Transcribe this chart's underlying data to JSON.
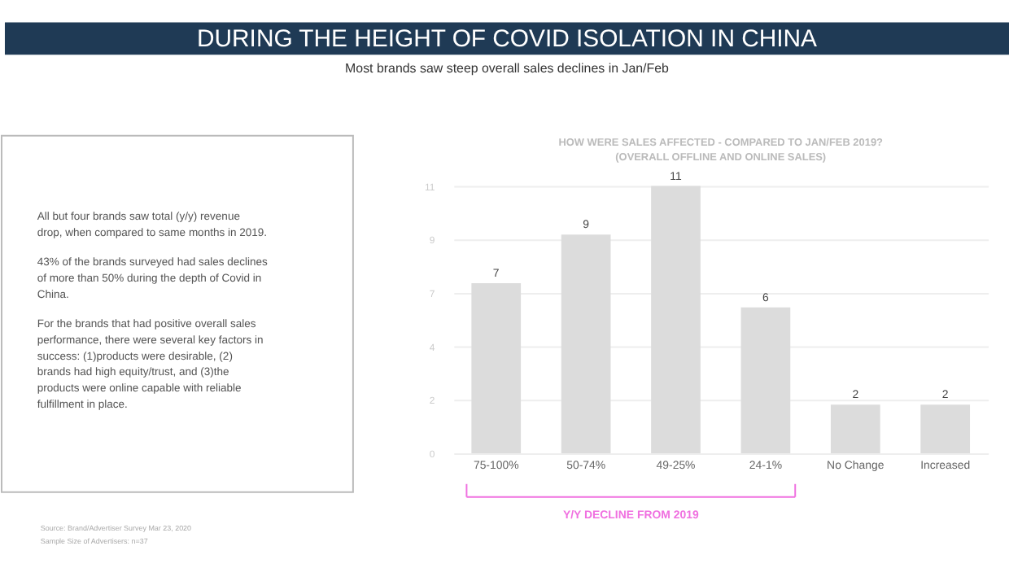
{
  "chart_data": {
    "type": "bar",
    "title": "DURING THE HEIGHT OF COVID ISOLATION IN CHINA",
    "subtitle": "Most brands saw steep overall sales declines in Jan/Feb",
    "categories": [
      "75-100%",
      "50-74%",
      "49-25%",
      "24-1%",
      "No Change",
      "Increased"
    ],
    "values": [
      7,
      9,
      11,
      6,
      2,
      2
    ],
    "color": "#dcdcdc",
    "ylim": [
      0,
      11
    ],
    "yticks": [
      0,
      {
        "value": 2.2,
        "label": "2"
      },
      {
        "value": 4.4,
        "label": "4"
      },
      {
        "value": 6.6,
        "label": "7"
      },
      {
        "value": 8.8,
        "label": "9"
      },
      11
    ],
    "grid": "y",
    "data_labels": true,
    "annotations": [
      "HOW WERE SALES AFFECTED - COMPARED TO JAN/FEB 2019?",
      "(OVERALL OFFLINE AND ONLINE SALES)",
      "All but four brands saw total (y/y) revenue drop, when compared to same months in 2019.",
      "43% of the brands surveyed had sales declines of more than 50% during the depth of Covid in China.",
      "For the brands that had positive overall sales performance, there were several key factors in success: (1)products were desirable, (2) brands had high equity/trust, and (3)the products were online capable with reliable fulfillment in place.",
      "Source: Brand/Advertiser Survey Mar 23, 2020",
      "Sample Size of Advertisers: n=37",
      "Y/Y DECLINE FROM 2019"
    ]
  }
}
